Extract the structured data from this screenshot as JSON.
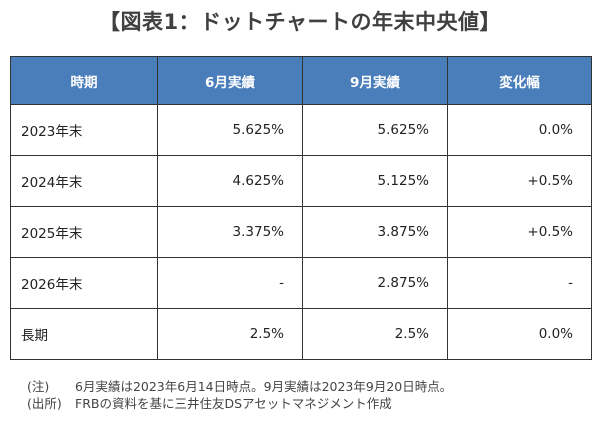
{
  "title": "【図表1：ドットチャートの年末中央値】",
  "table": {
    "headers": [
      "時期",
      "6月実績",
      "9月実績",
      "変化幅"
    ],
    "rows": [
      [
        "2023年末",
        "5.625%",
        "5.625%",
        "0.0%"
      ],
      [
        "2024年末",
        "4.625%",
        "5.125%",
        "+0.5%"
      ],
      [
        "2025年末",
        "3.375%",
        "3.875%",
        "+0.5%"
      ],
      [
        "2026年末",
        "-",
        "2.875%",
        "-"
      ],
      [
        "長期",
        "2.5%",
        "2.5%",
        "0.0%"
      ]
    ]
  },
  "notes": [
    {
      "label": "(注)",
      "text": "6月実績は2023年6月14日時点。9月実績は2023年9月20日時点。"
    },
    {
      "label": "(出所)",
      "text": "FRBの資料を基に三井住友DSアセットマネジメント作成"
    }
  ],
  "colors": {
    "header_bg": "#4a7ebb"
  }
}
